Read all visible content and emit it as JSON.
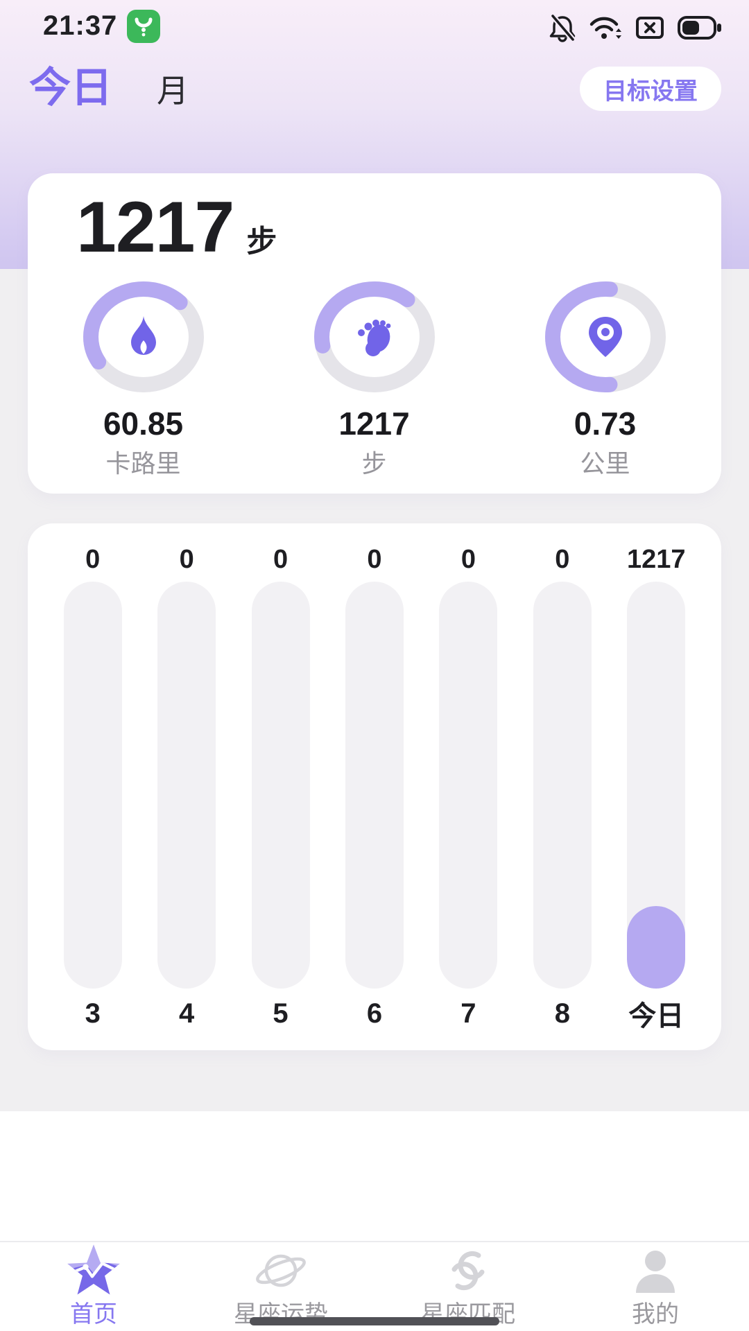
{
  "status_bar": {
    "time": "21:37",
    "battery_level_pct": 55,
    "icons": [
      "app-icon",
      "bell-off-icon",
      "wifi-icon",
      "sim-missing-icon",
      "battery-icon"
    ]
  },
  "header": {
    "tabs": [
      {
        "label": "今日",
        "active": true
      },
      {
        "label": "月",
        "active": false
      }
    ],
    "goal_button_label": "目标设置"
  },
  "summary_card": {
    "steps_value": "1217",
    "steps_unit": "步",
    "metrics": [
      {
        "name": "calories",
        "icon": "flame-icon",
        "value": "60.85",
        "label": "卡路里",
        "progress_pct": 46,
        "start_deg": 150
      },
      {
        "name": "steps",
        "icon": "footprint-icon",
        "value": "1217",
        "label": "步",
        "progress_pct": 39,
        "start_deg": 170
      },
      {
        "name": "distance",
        "icon": "location-pin-icon",
        "value": "0.73",
        "label": "公里",
        "progress_pct": 53,
        "start_deg": 85
      }
    ]
  },
  "chart_data": {
    "type": "bar",
    "title": "",
    "xlabel": "",
    "ylabel": "",
    "categories": [
      "3",
      "4",
      "5",
      "6",
      "7",
      "8",
      "今日"
    ],
    "values": [
      0,
      0,
      0,
      0,
      0,
      0,
      1217
    ],
    "value_labels": [
      "0",
      "0",
      "0",
      "0",
      "0",
      "0",
      "1217"
    ],
    "ymax": 6000,
    "grid": false,
    "legend": false,
    "highlight_category": "今日",
    "bar_color": "#b5a9f1",
    "track_color": "#f2f1f4"
  },
  "tab_bar": {
    "items": [
      {
        "label": "首页",
        "icon": "star-icon",
        "active": true
      },
      {
        "label": "星座运势",
        "icon": "planet-icon",
        "active": false
      },
      {
        "label": "星座匹配",
        "icon": "swirl-icon",
        "active": false
      },
      {
        "label": "我的",
        "icon": "person-icon",
        "active": false
      }
    ]
  },
  "colors": {
    "accent": "#7d6bee",
    "ring_arc": "#b5a9f1",
    "ring_track": "#e5e4e9",
    "icon_purple": "#7164e8",
    "text_dark": "#1e1e22",
    "text_gray": "#96959b",
    "page_gray": "#f0eff1",
    "gradient_top": "#f8eef9",
    "gradient_bottom": "#cfc5f0",
    "nav_inactive": "#d4d4d8",
    "home_indicator": "#515156"
  }
}
